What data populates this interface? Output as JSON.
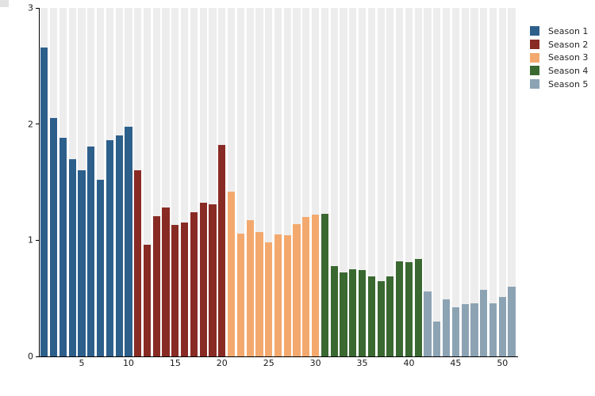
{
  "chart_data": {
    "type": "bar",
    "title": "",
    "xlabel": "",
    "ylabel": "",
    "ylim": [
      0,
      3
    ],
    "yticks": [
      0,
      1,
      2,
      3
    ],
    "xticks": [
      5,
      10,
      15,
      20,
      25,
      30,
      35,
      40,
      45,
      50
    ],
    "total_bars": 51,
    "grid": "background-stripes-per-bar",
    "stripe_color": "#ededed",
    "axis_color": "#000000",
    "legend_position": "top-right",
    "series": [
      {
        "name": "Season 1",
        "color": "#2d5f8b",
        "x_start": 1,
        "values": [
          2.66,
          2.05,
          1.88,
          1.7,
          1.6,
          1.81,
          1.52,
          1.86,
          1.9,
          1.98
        ]
      },
      {
        "name": "Season 2",
        "color": "#882b24",
        "x_start": 11,
        "values": [
          1.6,
          0.96,
          1.21,
          1.28,
          1.13,
          1.15,
          1.24,
          1.32,
          1.31,
          1.82
        ]
      },
      {
        "name": "Season 3",
        "color": "#f3a96e",
        "x_start": 21,
        "values": [
          1.42,
          1.06,
          1.17,
          1.07,
          0.98,
          1.05,
          1.04,
          1.14,
          1.2,
          1.22
        ]
      },
      {
        "name": "Season 4",
        "color": "#3a6831",
        "x_start": 31,
        "values": [
          1.23,
          0.78,
          0.72,
          0.75,
          0.74,
          0.69,
          0.65,
          0.69,
          0.82,
          0.81,
          0.84
        ]
      },
      {
        "name": "Season 5",
        "color": "#8ca3b4",
        "x_start": 42,
        "values": [
          0.56,
          0.3,
          0.49,
          0.42,
          0.45,
          0.46,
          0.57,
          0.46,
          0.51,
          0.6
        ]
      }
    ]
  }
}
